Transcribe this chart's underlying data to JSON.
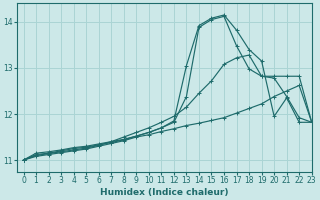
{
  "xlabel": "Humidex (Indice chaleur)",
  "ylabel": "",
  "bg_color": "#cce8e8",
  "line_color": "#1e6b6b",
  "grid_color": "#aad4d4",
  "xlim": [
    -0.5,
    23
  ],
  "ylim": [
    10.75,
    14.4
  ],
  "xticks": [
    0,
    1,
    2,
    3,
    4,
    5,
    6,
    7,
    8,
    9,
    10,
    11,
    12,
    13,
    14,
    15,
    16,
    17,
    18,
    19,
    20,
    21,
    22,
    23
  ],
  "yticks": [
    11,
    12,
    13,
    14
  ],
  "lines": [
    {
      "x": [
        0,
        1,
        2,
        3,
        4,
        5,
        6,
        7,
        8,
        9,
        10,
        11,
        12,
        13,
        14,
        15,
        16,
        17,
        18,
        19,
        20,
        21,
        22,
        23
      ],
      "y": [
        11.0,
        11.15,
        11.18,
        11.22,
        11.27,
        11.3,
        11.35,
        11.4,
        11.45,
        11.52,
        11.6,
        11.7,
        11.85,
        13.05,
        13.92,
        14.08,
        14.15,
        13.82,
        13.4,
        13.15,
        11.95,
        12.35,
        11.82,
        11.82
      ]
    },
    {
      "x": [
        0,
        1,
        2,
        3,
        4,
        5,
        6,
        7,
        8,
        9,
        10,
        11,
        12,
        13,
        14,
        15,
        16,
        17,
        18,
        19,
        20,
        21,
        22,
        23
      ],
      "y": [
        11.0,
        11.12,
        11.15,
        11.2,
        11.25,
        11.28,
        11.33,
        11.38,
        11.44,
        11.52,
        11.6,
        11.7,
        11.82,
        12.38,
        13.88,
        14.05,
        14.12,
        13.48,
        12.98,
        12.82,
        12.78,
        12.38,
        11.92,
        11.82
      ]
    },
    {
      "x": [
        0,
        1,
        2,
        3,
        4,
        5,
        6,
        7,
        8,
        9,
        10,
        11,
        12,
        13,
        14,
        15,
        16,
        17,
        18,
        19,
        20,
        21,
        22,
        23
      ],
      "y": [
        11.0,
        11.1,
        11.14,
        11.18,
        11.22,
        11.26,
        11.32,
        11.4,
        11.5,
        11.6,
        11.7,
        11.82,
        11.95,
        12.15,
        12.45,
        12.72,
        13.08,
        13.22,
        13.28,
        12.82,
        12.82,
        12.82,
        12.82,
        11.82
      ]
    },
    {
      "x": [
        0,
        1,
        2,
        3,
        4,
        5,
        6,
        7,
        8,
        9,
        10,
        11,
        12,
        13,
        14,
        15,
        16,
        17,
        18,
        19,
        20,
        21,
        22,
        23
      ],
      "y": [
        11.0,
        11.08,
        11.12,
        11.16,
        11.2,
        11.24,
        11.3,
        11.36,
        11.42,
        11.5,
        11.55,
        11.62,
        11.68,
        11.75,
        11.8,
        11.86,
        11.92,
        12.02,
        12.12,
        12.22,
        12.38,
        12.5,
        12.62,
        11.82
      ]
    }
  ]
}
